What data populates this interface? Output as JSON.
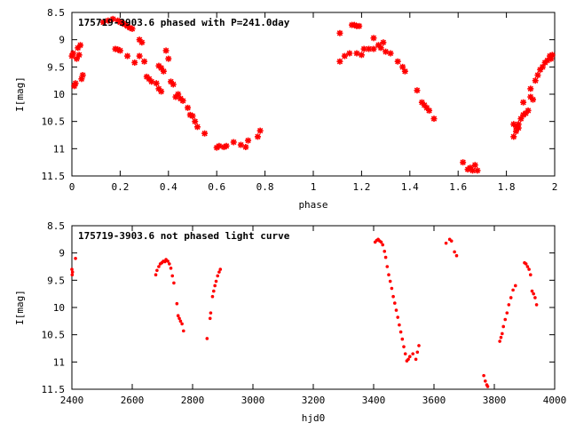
{
  "chart_data": [
    {
      "type": "scatter",
      "title": "175719-3903.6 phased with P=241.0day",
      "xlabel": "phase",
      "ylabel": "I[mag]",
      "xlim": [
        0,
        2
      ],
      "ylim": [
        11.5,
        8.5
      ],
      "y_inverted": true,
      "grid": false,
      "marker_color": "#ff0000",
      "marker": "star",
      "x_ticks": [
        0,
        0.2,
        0.4,
        0.6,
        0.8,
        1,
        1.2,
        1.4,
        1.6,
        1.8,
        2
      ],
      "x_tick_labels": [
        "0",
        "0.2",
        "0.4",
        "0.6",
        "0.8",
        "1",
        "1.2",
        "1.4",
        "1.6",
        "1.8",
        "2"
      ],
      "y_ticks": [
        8.5,
        9,
        9.5,
        10,
        10.5,
        11,
        11.5
      ],
      "y_tick_labels": [
        "8.5",
        "9",
        "9.5",
        "10",
        "10.5",
        "11",
        "11.5"
      ],
      "points": [
        [
          0.0,
          9.3
        ],
        [
          0.005,
          9.25
        ],
        [
          0.01,
          9.85
        ],
        [
          0.015,
          9.8
        ],
        [
          0.02,
          9.35
        ],
        [
          0.025,
          9.15
        ],
        [
          0.03,
          9.28
        ],
        [
          0.035,
          9.1
        ],
        [
          0.04,
          9.72
        ],
        [
          0.045,
          9.65
        ],
        [
          0.13,
          8.68
        ],
        [
          0.15,
          8.65
        ],
        [
          0.17,
          8.62
        ],
        [
          0.19,
          8.65
        ],
        [
          0.2,
          8.68
        ],
        [
          0.21,
          8.7
        ],
        [
          0.22,
          8.72
        ],
        [
          0.23,
          8.75
        ],
        [
          0.24,
          8.78
        ],
        [
          0.25,
          8.8
        ],
        [
          0.18,
          9.17
        ],
        [
          0.19,
          9.18
        ],
        [
          0.2,
          9.2
        ],
        [
          0.23,
          9.3
        ],
        [
          0.26,
          9.42
        ],
        [
          0.28,
          9.3
        ],
        [
          0.28,
          9.0
        ],
        [
          0.29,
          9.05
        ],
        [
          0.3,
          9.4
        ],
        [
          0.31,
          9.68
        ],
        [
          0.32,
          9.72
        ],
        [
          0.33,
          9.77
        ],
        [
          0.35,
          9.8
        ],
        [
          0.36,
          9.9
        ],
        [
          0.37,
          9.95
        ],
        [
          0.36,
          9.48
        ],
        [
          0.37,
          9.52
        ],
        [
          0.38,
          9.58
        ],
        [
          0.39,
          9.2
        ],
        [
          0.4,
          9.35
        ],
        [
          0.41,
          9.77
        ],
        [
          0.42,
          9.82
        ],
        [
          0.43,
          10.05
        ],
        [
          0.44,
          10.0
        ],
        [
          0.45,
          10.08
        ],
        [
          0.46,
          10.12
        ],
        [
          0.48,
          10.25
        ],
        [
          0.49,
          10.38
        ],
        [
          0.5,
          10.4
        ],
        [
          0.51,
          10.5
        ],
        [
          0.52,
          10.6
        ],
        [
          0.55,
          10.72
        ],
        [
          0.6,
          10.98
        ],
        [
          0.61,
          10.95
        ],
        [
          0.63,
          10.97
        ],
        [
          0.64,
          10.95
        ],
        [
          0.67,
          10.88
        ],
        [
          0.7,
          10.93
        ],
        [
          0.72,
          10.97
        ],
        [
          0.73,
          10.85
        ],
        [
          0.77,
          10.78
        ],
        [
          0.78,
          10.67
        ],
        [
          1.11,
          8.88
        ],
        [
          1.11,
          9.4
        ],
        [
          1.13,
          9.3
        ],
        [
          1.15,
          9.25
        ],
        [
          1.16,
          8.73
        ],
        [
          1.17,
          8.73
        ],
        [
          1.18,
          8.75
        ],
        [
          1.18,
          9.25
        ],
        [
          1.19,
          8.75
        ],
        [
          1.2,
          9.28
        ],
        [
          1.21,
          9.17
        ],
        [
          1.23,
          9.17
        ],
        [
          1.25,
          9.17
        ],
        [
          1.25,
          8.97
        ],
        [
          1.27,
          9.1
        ],
        [
          1.28,
          9.15
        ],
        [
          1.29,
          9.05
        ],
        [
          1.3,
          9.22
        ],
        [
          1.32,
          9.25
        ],
        [
          1.35,
          9.4
        ],
        [
          1.37,
          9.5
        ],
        [
          1.38,
          9.58
        ],
        [
          1.43,
          9.93
        ],
        [
          1.45,
          10.15
        ],
        [
          1.46,
          10.2
        ],
        [
          1.47,
          10.25
        ],
        [
          1.48,
          10.3
        ],
        [
          1.5,
          10.45
        ],
        [
          1.62,
          11.25
        ],
        [
          1.64,
          11.38
        ],
        [
          1.65,
          11.35
        ],
        [
          1.66,
          11.4
        ],
        [
          1.67,
          11.3
        ],
        [
          1.68,
          11.4
        ],
        [
          1.83,
          10.55
        ],
        [
          1.83,
          10.78
        ],
        [
          1.84,
          10.6
        ],
        [
          1.84,
          10.68
        ],
        [
          1.85,
          10.62
        ],
        [
          1.85,
          10.55
        ],
        [
          1.86,
          10.45
        ],
        [
          1.87,
          10.38
        ],
        [
          1.87,
          10.15
        ],
        [
          1.88,
          10.35
        ],
        [
          1.89,
          10.3
        ],
        [
          1.9,
          10.05
        ],
        [
          1.9,
          9.9
        ],
        [
          1.91,
          10.1
        ],
        [
          1.92,
          9.75
        ],
        [
          1.93,
          9.65
        ],
        [
          1.94,
          9.55
        ],
        [
          1.95,
          9.5
        ],
        [
          1.96,
          9.42
        ],
        [
          1.97,
          9.38
        ],
        [
          1.98,
          9.3
        ],
        [
          1.985,
          9.35
        ],
        [
          1.99,
          9.28
        ]
      ]
    },
    {
      "type": "scatter",
      "title": "175719-3903.6 not phased light curve",
      "xlabel": "hjd0",
      "ylabel": "I[mag]",
      "xlim": [
        2400,
        4000
      ],
      "ylim": [
        11.5,
        8.5
      ],
      "y_inverted": true,
      "grid": false,
      "marker_color": "#ff0000",
      "marker": "dot",
      "x_ticks": [
        2400,
        2600,
        2800,
        3000,
        3200,
        3400,
        3600,
        3800,
        4000
      ],
      "x_tick_labels": [
        "2400",
        "2600",
        "2800",
        "3000",
        "3200",
        "3400",
        "3600",
        "3800",
        "4000"
      ],
      "y_ticks": [
        8.5,
        9,
        9.5,
        10,
        10.5,
        11,
        11.5
      ],
      "y_tick_labels": [
        "8.5",
        "9",
        "9.5",
        "10",
        "10.5",
        "11",
        "11.5"
      ],
      "points": [
        [
          2400,
          9.3
        ],
        [
          2401,
          9.4
        ],
        [
          2402,
          9.35
        ],
        [
          2412,
          9.1
        ],
        [
          2678,
          9.4
        ],
        [
          2682,
          9.32
        ],
        [
          2688,
          9.25
        ],
        [
          2693,
          9.2
        ],
        [
          2698,
          9.18
        ],
        [
          2703,
          9.15
        ],
        [
          2708,
          9.16
        ],
        [
          2712,
          9.12
        ],
        [
          2718,
          9.15
        ],
        [
          2723,
          9.2
        ],
        [
          2728,
          9.28
        ],
        [
          2733,
          9.42
        ],
        [
          2738,
          9.55
        ],
        [
          2748,
          9.93
        ],
        [
          2752,
          10.15
        ],
        [
          2756,
          10.2
        ],
        [
          2760,
          10.25
        ],
        [
          2765,
          10.3
        ],
        [
          2770,
          10.43
        ],
        [
          2848,
          10.57
        ],
        [
          2858,
          10.2
        ],
        [
          2860,
          10.1
        ],
        [
          2866,
          9.8
        ],
        [
          2870,
          9.7
        ],
        [
          2874,
          9.6
        ],
        [
          2878,
          9.52
        ],
        [
          2883,
          9.42
        ],
        [
          2888,
          9.35
        ],
        [
          2892,
          9.3
        ],
        [
          3405,
          8.8
        ],
        [
          3410,
          8.77
        ],
        [
          3415,
          8.75
        ],
        [
          3420,
          8.78
        ],
        [
          3425,
          8.8
        ],
        [
          3430,
          8.85
        ],
        [
          3436,
          8.97
        ],
        [
          3440,
          9.08
        ],
        [
          3445,
          9.25
        ],
        [
          3450,
          9.4
        ],
        [
          3455,
          9.52
        ],
        [
          3460,
          9.65
        ],
        [
          3465,
          9.8
        ],
        [
          3470,
          9.92
        ],
        [
          3475,
          10.05
        ],
        [
          3480,
          10.18
        ],
        [
          3485,
          10.32
        ],
        [
          3490,
          10.45
        ],
        [
          3495,
          10.58
        ],
        [
          3500,
          10.72
        ],
        [
          3505,
          10.85
        ],
        [
          3510,
          10.98
        ],
        [
          3515,
          10.95
        ],
        [
          3520,
          10.9
        ],
        [
          3530,
          10.85
        ],
        [
          3540,
          10.95
        ],
        [
          3545,
          10.82
        ],
        [
          3550,
          10.7
        ],
        [
          3640,
          8.82
        ],
        [
          3652,
          8.75
        ],
        [
          3658,
          8.78
        ],
        [
          3668,
          8.98
        ],
        [
          3675,
          9.05
        ],
        [
          3765,
          11.25
        ],
        [
          3770,
          11.35
        ],
        [
          3775,
          11.42
        ],
        [
          3778,
          11.45
        ],
        [
          3818,
          10.62
        ],
        [
          3822,
          10.55
        ],
        [
          3826,
          10.48
        ],
        [
          3830,
          10.35
        ],
        [
          3836,
          10.22
        ],
        [
          3842,
          10.1
        ],
        [
          3848,
          9.95
        ],
        [
          3855,
          9.82
        ],
        [
          3862,
          9.68
        ],
        [
          3870,
          9.6
        ],
        [
          3900,
          9.18
        ],
        [
          3905,
          9.2
        ],
        [
          3910,
          9.25
        ],
        [
          3915,
          9.3
        ],
        [
          3920,
          9.4
        ],
        [
          3925,
          9.7
        ],
        [
          3930,
          9.75
        ],
        [
          3935,
          9.82
        ],
        [
          3940,
          9.95
        ]
      ]
    }
  ]
}
